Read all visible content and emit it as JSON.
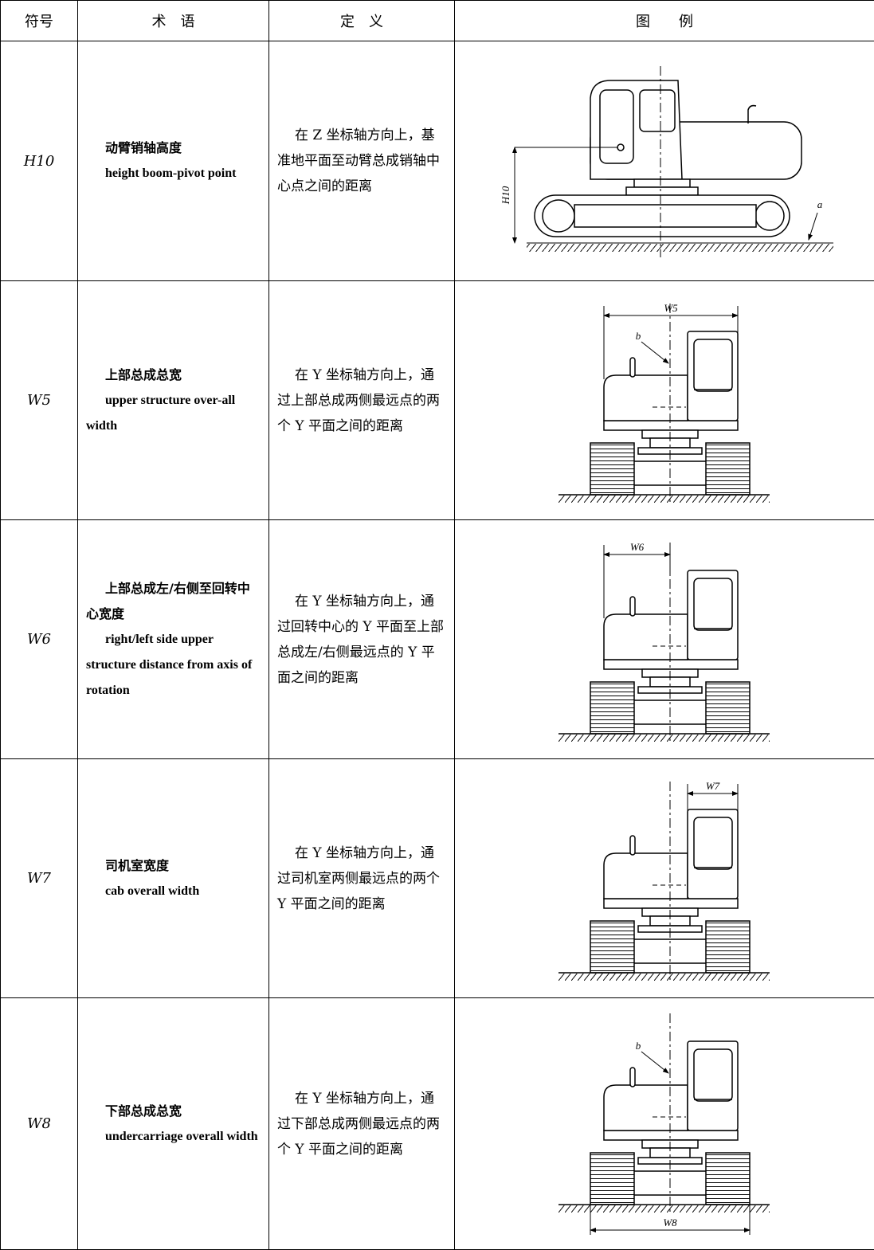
{
  "table": {
    "header": [
      "符号",
      "术　语",
      "定　义",
      "图　　例"
    ],
    "rows": [
      {
        "symbol": "H10",
        "term_zh": "动臂销轴高度",
        "term_en": "height boom-pivot point",
        "definition": "在 Z 坐标轴方向上，基准地平面至动臂总成销轴中心点之间的距离",
        "figure_labels": [
          "H10",
          "a"
        ]
      },
      {
        "symbol": "W5",
        "term_zh": "上部总成总宽",
        "term_en": "upper structure over-all width",
        "definition": "在 Y 坐标轴方向上，通过上部总成两侧最远点的两个 Y 平面之间的距离",
        "figure_labels": [
          "W5",
          "b"
        ]
      },
      {
        "symbol": "W6",
        "term_zh": "上部总成左/右侧至回转中心宽度",
        "term_en": "right/left side upper structure distance from axis of rotation",
        "definition": "在 Y 坐标轴方向上，通过回转中心的 Y 平面至上部总成左/右侧最远点的 Y 平面之间的距离",
        "figure_labels": [
          "W6"
        ]
      },
      {
        "symbol": "W7",
        "term_zh": "司机室宽度",
        "term_en": "cab overall width",
        "definition": "在 Y 坐标轴方向上，通过司机室两侧最远点的两个 Y 平面之间的距离",
        "figure_labels": [
          "W7"
        ]
      },
      {
        "symbol": "W8",
        "term_zh": "下部总成总宽",
        "term_en": "undercarriage overall width",
        "definition": "在 Y 坐标轴方向上，通过下部总成两侧最远点的两个 Y 平面之间的距离",
        "figure_labels": [
          "W8",
          "b"
        ]
      }
    ]
  }
}
